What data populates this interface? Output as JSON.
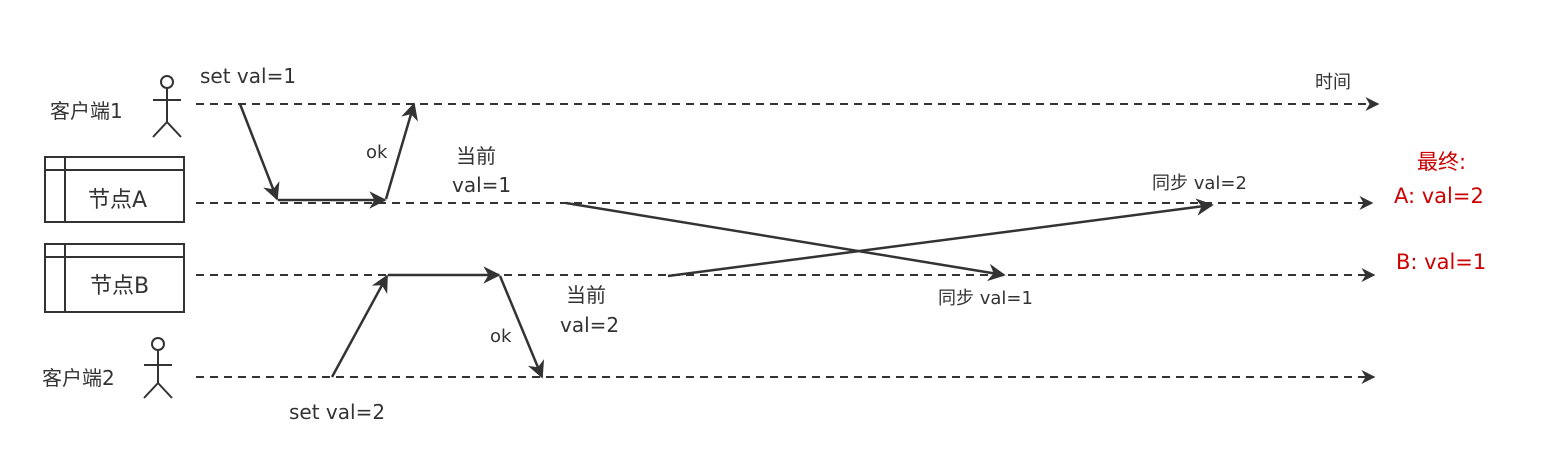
{
  "actors": {
    "client1": "客户端1",
    "client2": "客户端2"
  },
  "nodes": {
    "a": "节点A",
    "b": "节点B"
  },
  "time_label": "时间",
  "messages": {
    "set_val1": "set  val=1",
    "ok1": "ok",
    "current_a_line1": "当前",
    "current_a_line2": "val=1",
    "set_val2": "set  val=2",
    "ok2": "ok",
    "current_b_line1": "当前",
    "current_b_line2": "val=2",
    "sync_to_a": "同步 val=2",
    "sync_to_b": "同步  val=1"
  },
  "final": {
    "title": "最终:",
    "a": "A: val=2",
    "b": "B: val=1"
  },
  "colors": {
    "line": "#333333",
    "final": "#cc0000"
  }
}
